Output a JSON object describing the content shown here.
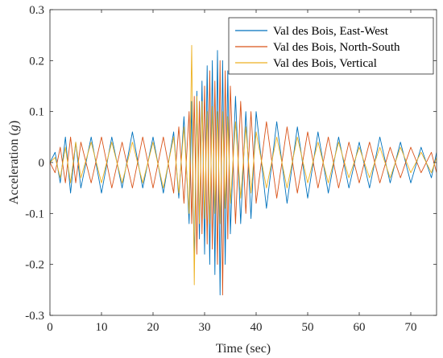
{
  "chart_data": {
    "type": "line",
    "title": "",
    "xlabel": "Time (sec)",
    "ylabel_main": "Acceleration (",
    "ylabel_unit": "g",
    "ylabel_close": ")",
    "xlim": [
      0,
      75
    ],
    "ylim": [
      -0.3,
      0.3
    ],
    "xticks": [
      0,
      10,
      20,
      30,
      40,
      50,
      60,
      70
    ],
    "xtick_labels": [
      "0",
      "10",
      "20",
      "30",
      "40",
      "50",
      "60",
      "70"
    ],
    "yticks": [
      -0.3,
      -0.2,
      -0.1,
      0,
      0.1,
      0.2,
      0.3
    ],
    "ytick_labels": [
      "-0.3",
      "-0.2",
      "-0.1",
      "0",
      "0.1",
      "0.2",
      "0.3"
    ],
    "grid": false,
    "legend_position": "top-right",
    "series": [
      {
        "name": "Val des Bois, East-West",
        "color": "#0072BD",
        "x": [
          0,
          1,
          2,
          3,
          4,
          5,
          6,
          8,
          10,
          12,
          14,
          16,
          18,
          20,
          22,
          24,
          25,
          26,
          27,
          27.5,
          28,
          28.5,
          29,
          29.5,
          30,
          30.5,
          31,
          31.5,
          32,
          32.5,
          33,
          33.5,
          34,
          34.5,
          35,
          36,
          37,
          38,
          39,
          40,
          42,
          44,
          46,
          48,
          50,
          52,
          54,
          56,
          58,
          60,
          62,
          64,
          66,
          68,
          70,
          72,
          74,
          75
        ],
        "y": [
          0,
          0.02,
          -0.04,
          0.05,
          -0.06,
          0.04,
          -0.05,
          0.05,
          -0.06,
          0.05,
          -0.05,
          0.06,
          -0.05,
          0.05,
          -0.06,
          0.06,
          -0.07,
          0.09,
          -0.12,
          0.12,
          -0.2,
          0.14,
          -0.15,
          0.16,
          -0.18,
          0.19,
          -0.2,
          0.2,
          -0.22,
          0.22,
          -0.26,
          0.2,
          -0.2,
          0.18,
          -0.14,
          0.13,
          -0.12,
          0.1,
          -0.11,
          0.1,
          -0.09,
          0.08,
          -0.08,
          0.07,
          -0.07,
          0.06,
          -0.06,
          0.05,
          -0.05,
          0.04,
          -0.05,
          0.05,
          -0.04,
          0.04,
          -0.04,
          0.03,
          -0.03,
          0.02
        ]
      },
      {
        "name": "Val des Bois, North-South",
        "color": "#D95319",
        "x": [
          0,
          1,
          2,
          3,
          4,
          5,
          6,
          8,
          10,
          12,
          14,
          16,
          18,
          20,
          22,
          24,
          25,
          26,
          27,
          27.5,
          28,
          28.5,
          29,
          29.5,
          30,
          30.5,
          31,
          31.5,
          32,
          32.5,
          33,
          33.5,
          34,
          34.5,
          35,
          36,
          37,
          38,
          39,
          40,
          42,
          44,
          46,
          48,
          50,
          52,
          54,
          56,
          58,
          60,
          62,
          64,
          66,
          68,
          70,
          72,
          74,
          75
        ],
        "y": [
          0,
          -0.02,
          0.03,
          -0.04,
          0.05,
          -0.04,
          0.04,
          -0.04,
          0.05,
          -0.05,
          0.04,
          -0.05,
          0.05,
          -0.05,
          0.05,
          -0.06,
          0.07,
          -0.08,
          0.1,
          -0.12,
          0.13,
          -0.18,
          0.12,
          -0.14,
          0.15,
          -0.16,
          0.18,
          -0.17,
          0.16,
          -0.2,
          0.2,
          -0.26,
          0.18,
          -0.15,
          0.15,
          -0.12,
          0.12,
          -0.1,
          0.1,
          -0.08,
          0.08,
          -0.07,
          0.07,
          -0.06,
          0.06,
          -0.05,
          0.05,
          -0.05,
          0.04,
          -0.04,
          0.04,
          -0.04,
          0.03,
          -0.03,
          0.03,
          -0.02,
          0.02,
          -0.02
        ]
      },
      {
        "name": "Val des Bois, Vertical",
        "color": "#EDB120",
        "x": [
          0,
          1,
          2,
          3,
          4,
          5,
          6,
          8,
          10,
          12,
          14,
          16,
          18,
          20,
          22,
          24,
          25,
          26,
          27,
          27.5,
          28,
          28.5,
          29,
          29.5,
          30,
          30.5,
          31,
          31.5,
          32,
          32.5,
          33,
          33.5,
          34,
          34.5,
          35,
          36,
          37,
          38,
          39,
          40,
          42,
          44,
          46,
          48,
          50,
          52,
          54,
          56,
          58,
          60,
          62,
          64,
          66,
          68,
          70,
          72,
          74,
          75
        ],
        "y": [
          0,
          0.01,
          -0.03,
          0.03,
          -0.04,
          0.04,
          -0.03,
          0.04,
          -0.04,
          0.04,
          -0.04,
          0.04,
          -0.04,
          0.04,
          -0.05,
          0.05,
          -0.06,
          0.07,
          -0.1,
          0.23,
          -0.24,
          0.13,
          -0.12,
          0.12,
          -0.11,
          0.1,
          -0.12,
          0.11,
          -0.1,
          0.1,
          -0.12,
          0.1,
          -0.09,
          0.09,
          -0.08,
          0.08,
          -0.07,
          0.07,
          -0.06,
          0.06,
          -0.05,
          0.05,
          -0.05,
          0.05,
          -0.04,
          0.04,
          -0.04,
          0.04,
          -0.03,
          0.03,
          -0.03,
          0.03,
          -0.03,
          0.03,
          -0.02,
          0.02,
          -0.02,
          0.01
        ]
      }
    ]
  }
}
